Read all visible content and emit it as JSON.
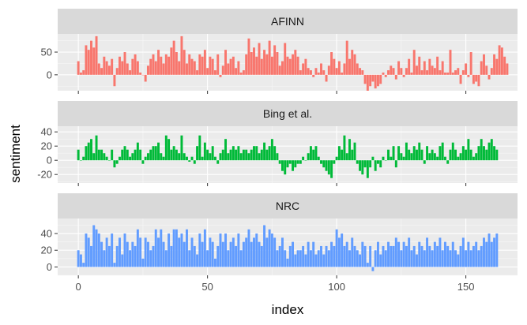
{
  "chart_data": {
    "type": "bar",
    "xlabel": "index",
    "ylabel": "sentiment",
    "x_ticks": [
      0,
      50,
      100,
      150
    ],
    "xlim": [
      -8,
      170
    ],
    "grid": true,
    "panels": [
      {
        "name": "AFINN",
        "color": "#F8766D",
        "ylim": [
          -35,
          90
        ],
        "y_ticks": [
          0,
          50
        ],
        "values": [
          30,
          5,
          10,
          65,
          55,
          75,
          60,
          85,
          25,
          15,
          40,
          30,
          20,
          35,
          -25,
          15,
          40,
          30,
          50,
          25,
          10,
          35,
          45,
          30,
          5,
          0,
          -15,
          20,
          35,
          45,
          30,
          55,
          40,
          25,
          45,
          40,
          60,
          75,
          50,
          30,
          85,
          55,
          25,
          45,
          35,
          30,
          10,
          45,
          40,
          55,
          15,
          40,
          35,
          10,
          45,
          -5,
          20,
          55,
          25,
          35,
          40,
          15,
          30,
          5,
          10,
          45,
          80,
          50,
          60,
          40,
          70,
          35,
          55,
          45,
          75,
          40,
          65,
          50,
          20,
          30,
          70,
          40,
          35,
          45,
          55,
          40,
          10,
          25,
          35,
          15,
          10,
          -5,
          15,
          5,
          25,
          10,
          -15,
          20,
          50,
          35,
          15,
          30,
          5,
          25,
          75,
          35,
          55,
          45,
          25,
          15,
          10,
          -20,
          -35,
          -25,
          -15,
          -30,
          -25,
          -20,
          5,
          -5,
          10,
          20,
          15,
          -10,
          30,
          15,
          -5,
          15,
          35,
          5,
          55,
          20,
          40,
          10,
          30,
          10,
          35,
          20,
          15,
          40,
          10,
          30,
          5,
          5,
          55,
          5,
          10,
          15,
          -20,
          10,
          25,
          -5,
          50,
          -20,
          -15,
          -25,
          30,
          45,
          20,
          -10,
          15,
          45,
          35,
          65,
          60,
          40,
          25
        ]
      },
      {
        "name": "Bing et al.",
        "color": "#00BA38",
        "ylim": [
          -32,
          48
        ],
        "y_ticks": [
          -20,
          0,
          20,
          40
        ],
        "values": [
          15,
          0,
          5,
          20,
          25,
          30,
          10,
          35,
          15,
          15,
          10,
          5,
          0,
          15,
          -10,
          -5,
          5,
          15,
          20,
          15,
          5,
          10,
          15,
          25,
          15,
          -5,
          5,
          10,
          15,
          20,
          20,
          25,
          10,
          5,
          35,
          30,
          15,
          20,
          15,
          10,
          35,
          10,
          5,
          -2,
          5,
          -5,
          20,
          35,
          5,
          25,
          15,
          10,
          20,
          5,
          -5,
          10,
          15,
          30,
          10,
          15,
          20,
          15,
          20,
          10,
          15,
          15,
          10,
          15,
          20,
          20,
          10,
          15,
          25,
          15,
          20,
          30,
          20,
          10,
          -5,
          -15,
          -20,
          -10,
          -5,
          -15,
          -10,
          -5,
          -5,
          5,
          0,
          10,
          20,
          15,
          20,
          5,
          -5,
          -10,
          -15,
          -20,
          -25,
          -5,
          5,
          20,
          15,
          35,
          10,
          30,
          15,
          25,
          -5,
          -15,
          -20,
          -10,
          -25,
          -10,
          5,
          -15,
          -5,
          -10,
          5,
          0,
          15,
          5,
          20,
          -10,
          20,
          10,
          5,
          25,
          15,
          10,
          20,
          15,
          25,
          15,
          -5,
          20,
          10,
          15,
          10,
          5,
          20,
          25,
          5,
          -5,
          15,
          25,
          15,
          5,
          10,
          20,
          15,
          30,
          15,
          5,
          10,
          20,
          30,
          20,
          15,
          25,
          30,
          20,
          15
        ]
      },
      {
        "name": "NRC",
        "color": "#619CFF",
        "ylim": [
          -10,
          58
        ],
        "y_ticks": [
          0,
          20,
          40
        ],
        "values": [
          20,
          15,
          5,
          40,
          35,
          25,
          50,
          45,
          40,
          30,
          20,
          35,
          25,
          40,
          5,
          25,
          35,
          15,
          40,
          30,
          20,
          30,
          25,
          45,
          35,
          10,
          35,
          30,
          20,
          25,
          45,
          35,
          45,
          30,
          20,
          40,
          25,
          45,
          45,
          35,
          40,
          30,
          45,
          20,
          35,
          25,
          15,
          40,
          30,
          45,
          20,
          35,
          30,
          10,
          25,
          40,
          30,
          40,
          20,
          30,
          35,
          25,
          40,
          20,
          30,
          35,
          45,
          30,
          35,
          40,
          30,
          25,
          50,
          35,
          45,
          40,
          35,
          20,
          25,
          35,
          20,
          10,
          25,
          30,
          15,
          20,
          20,
          25,
          15,
          30,
          20,
          30,
          15,
          20,
          25,
          15,
          25,
          20,
          30,
          25,
          45,
          35,
          40,
          25,
          30,
          20,
          35,
          25,
          20,
          15,
          30,
          25,
          5,
          25,
          -5,
          20,
          30,
          15,
          25,
          20,
          30,
          25,
          25,
          35,
          30,
          20,
          30,
          25,
          35,
          20,
          25,
          15,
          30,
          25,
          20,
          35,
          25,
          20,
          30,
          25,
          35,
          20,
          30,
          25,
          20,
          30,
          20,
          15,
          25,
          35,
          20,
          30,
          20,
          25,
          30,
          20,
          25,
          35,
          30,
          40,
          30,
          35,
          40
        ]
      }
    ]
  }
}
